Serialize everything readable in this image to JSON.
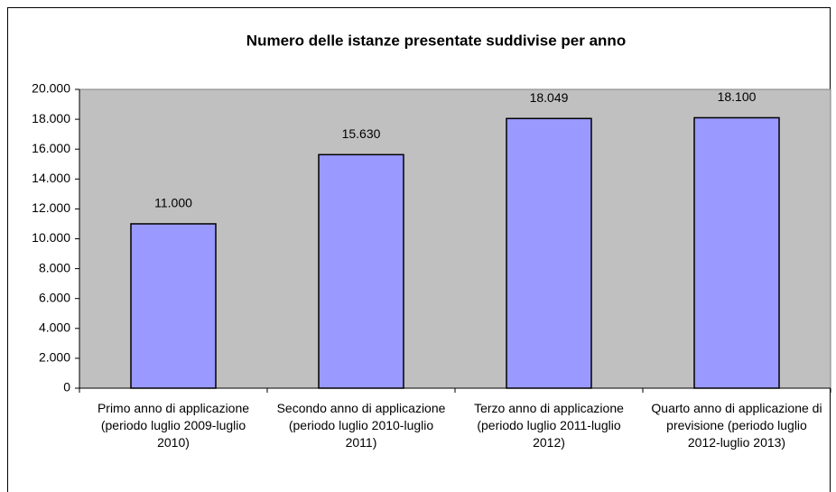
{
  "chart_data": {
    "type": "bar",
    "title": "Numero delle istanze presentate suddivise per anno",
    "categories": [
      "Primo anno di applicazione (periodo luglio 2009-luglio 2010)",
      "Secondo anno di applicazione (periodo luglio 2010-luglio 2011)",
      "Terzo anno di applicazione (periodo luglio 2011-luglio 2012)",
      "Quarto anno di applicazione di previsione (periodo luglio 2012-luglio 2013)"
    ],
    "values": [
      11000,
      15630,
      18049,
      18100
    ],
    "value_labels": [
      "11.000",
      "15.630",
      "18.049",
      "18.100"
    ],
    "color": "#9999ff",
    "ylim": [
      0,
      20000
    ],
    "yticks": [
      0,
      {
        "value": 2000,
        "label": "2.000"
      },
      {
        "value": 4000,
        "label": "4.000"
      },
      {
        "value": 6000,
        "label": "6.000"
      },
      {
        "value": 8000,
        "label": "8.000"
      },
      {
        "value": 10000,
        "label": "10.000"
      },
      {
        "value": 12000,
        "label": "12.000"
      },
      {
        "value": 14000,
        "label": "14.000"
      },
      {
        "value": 16000,
        "label": "16.000"
      },
      {
        "value": 18000,
        "label": "18.000"
      },
      {
        "value": 20000,
        "label": "20.000"
      }
    ],
    "grid": false
  }
}
